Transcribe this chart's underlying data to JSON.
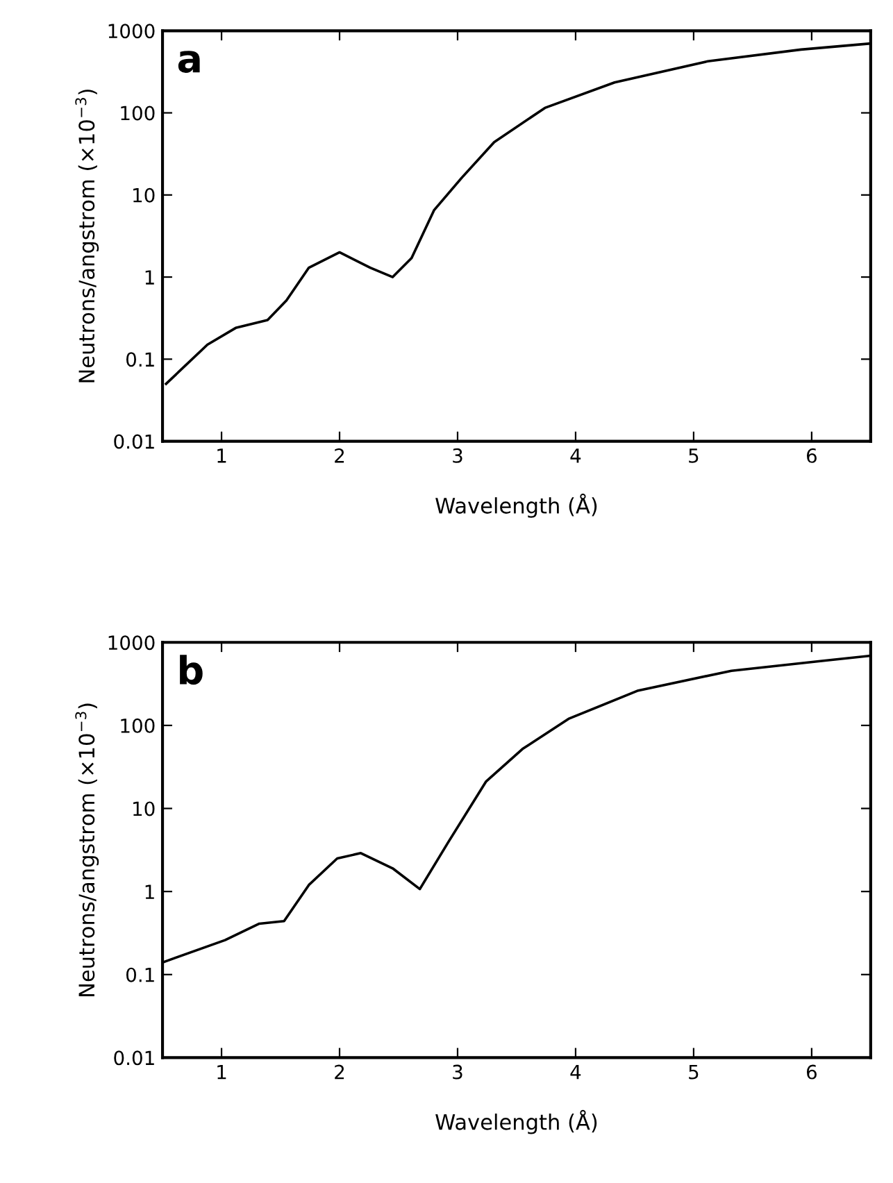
{
  "chart_data": [
    {
      "type": "line",
      "xlabel": "Wavelength (Å)",
      "ylabel": "Neutrons/angstrom (×10$^{−3}$)",
      "annotations": [
        "a"
      ],
      "log": "y",
      "xlim": [
        0.5,
        6.5
      ],
      "ylim": [
        0.01,
        1000
      ],
      "xticks": [
        1,
        2,
        3,
        4,
        5,
        6
      ],
      "yticks": [
        0.01,
        0.1,
        1,
        10,
        100,
        1000
      ],
      "grid": false,
      "legend": false,
      "series": [
        {
          "color": "#000000",
          "x": [
            0.53,
            0.88,
            1.12,
            1.39,
            1.55,
            1.74,
            2.0,
            2.26,
            2.45,
            2.61,
            2.8,
            3.04,
            3.31,
            3.74,
            4.33,
            5.12,
            5.91,
            6.5
          ],
          "values": [
            0.05,
            0.15,
            0.24,
            0.3,
            0.52,
            1.3,
            2.0,
            1.3,
            1.0,
            1.7,
            6.5,
            16.5,
            44,
            115,
            235,
            425,
            590,
            700
          ]
        }
      ]
    },
    {
      "type": "line",
      "xlabel": "Wavelength (Å)",
      "ylabel": "Neutrons/angstrom (×10$^{−3}$)",
      "annotations": [
        "b"
      ],
      "log": "y",
      "xlim": [
        0.5,
        6.5
      ],
      "ylim": [
        0.01,
        1000
      ],
      "xticks": [
        1,
        2,
        3,
        4,
        5,
        6
      ],
      "yticks": [
        0.01,
        0.1,
        1,
        10,
        100,
        1000
      ],
      "grid": false,
      "legend": false,
      "series": [
        {
          "color": "#000000",
          "x": [
            0.5,
            1.03,
            1.32,
            1.53,
            1.74,
            1.98,
            2.18,
            2.45,
            2.68,
            2.92,
            3.24,
            3.55,
            3.94,
            4.53,
            5.32,
            6.1,
            6.5
          ],
          "values": [
            0.14,
            0.26,
            0.41,
            0.44,
            1.2,
            2.5,
            2.9,
            1.9,
            1.07,
            3.9,
            21,
            52,
            120,
            263,
            455,
            600,
            690
          ]
        }
      ]
    }
  ]
}
